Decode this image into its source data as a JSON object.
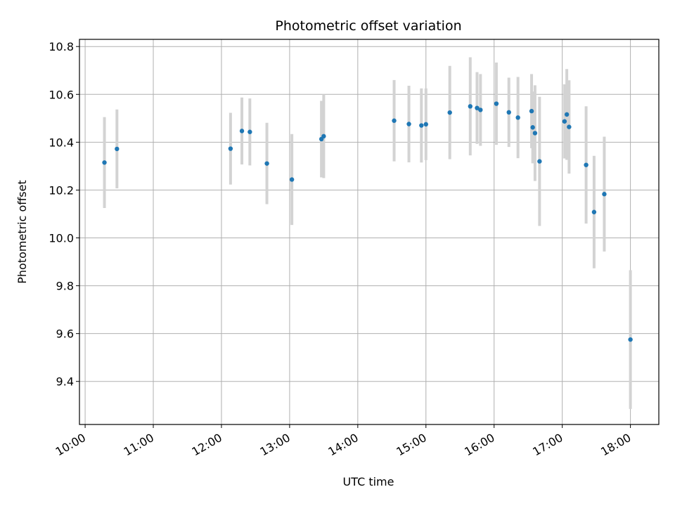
{
  "chart_data": {
    "type": "scatter",
    "title": "Photometric offset variation",
    "xlabel": "UTC time",
    "ylabel": "Photometric offset",
    "grid": true,
    "x_ticks": [
      "10:00",
      "11:00",
      "12:00",
      "13:00",
      "14:00",
      "15:00",
      "16:00",
      "17:00",
      "18:00"
    ],
    "y_ticks": [
      "9.4",
      "9.6",
      "9.8",
      "10.0",
      "10.2",
      "10.4",
      "10.6",
      "10.8"
    ],
    "xlim": [
      "09:55",
      "18:25"
    ],
    "ylim": [
      9.22,
      10.83
    ],
    "point_color": "#1f77b4",
    "errorbar_color": "#d3d3d3",
    "points": [
      {
        "x": "10:17",
        "y": 10.315,
        "err": 0.19
      },
      {
        "x": "10:28",
        "y": 10.372,
        "err": 0.165
      },
      {
        "x": "12:08",
        "y": 10.373,
        "err": 0.15
      },
      {
        "x": "12:18",
        "y": 10.447,
        "err": 0.14
      },
      {
        "x": "12:25",
        "y": 10.443,
        "err": 0.14
      },
      {
        "x": "12:40",
        "y": 10.311,
        "err": 0.17
      },
      {
        "x": "13:02",
        "y": 10.244,
        "err": 0.19
      },
      {
        "x": "13:28",
        "y": 10.413,
        "err": 0.16
      },
      {
        "x": "13:30",
        "y": 10.425,
        "err": 0.175
      },
      {
        "x": "14:32",
        "y": 10.49,
        "err": 0.17
      },
      {
        "x": "14:45",
        "y": 10.476,
        "err": 0.16
      },
      {
        "x": "14:56",
        "y": 10.47,
        "err": 0.155
      },
      {
        "x": "15:00",
        "y": 10.475,
        "err": 0.15
      },
      {
        "x": "15:21",
        "y": 10.524,
        "err": 0.195
      },
      {
        "x": "15:39",
        "y": 10.55,
        "err": 0.205
      },
      {
        "x": "15:45",
        "y": 10.543,
        "err": 0.15
      },
      {
        "x": "15:48",
        "y": 10.535,
        "err": 0.15
      },
      {
        "x": "16:02",
        "y": 10.561,
        "err": 0.172
      },
      {
        "x": "16:13",
        "y": 10.525,
        "err": 0.145
      },
      {
        "x": "16:21",
        "y": 10.503,
        "err": 0.17
      },
      {
        "x": "16:33",
        "y": 10.53,
        "err": 0.155
      },
      {
        "x": "16:34",
        "y": 10.462,
        "err": 0.15
      },
      {
        "x": "16:36",
        "y": 10.438,
        "err": 0.2
      },
      {
        "x": "16:40",
        "y": 10.32,
        "err": 0.27
      },
      {
        "x": "17:02",
        "y": 10.487,
        "err": 0.155
      },
      {
        "x": "17:04",
        "y": 10.516,
        "err": 0.19
      },
      {
        "x": "17:06",
        "y": 10.464,
        "err": 0.195
      },
      {
        "x": "17:21",
        "y": 10.305,
        "err": 0.245
      },
      {
        "x": "17:28",
        "y": 10.108,
        "err": 0.235
      },
      {
        "x": "17:37",
        "y": 10.183,
        "err": 0.24
      },
      {
        "x": "18:00",
        "y": 9.575,
        "err": 0.29
      }
    ]
  }
}
